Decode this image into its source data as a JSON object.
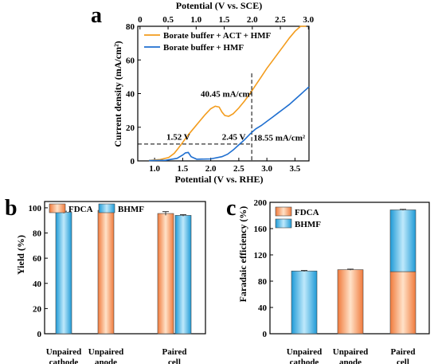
{
  "chart_data": [
    {
      "id": "a",
      "type": "line",
      "panel_label": "a",
      "xlabel": "Potential (V vs. RHE)",
      "x2label": "Potential (V vs. SCE)",
      "ylabel": "Current density (mA/cm²)",
      "xlim": [
        0.7,
        3.75
      ],
      "ylim": [
        0,
        80
      ],
      "xticks": [
        1.0,
        1.5,
        2.0,
        2.5,
        3.0,
        3.5
      ],
      "xticklabels": [
        "1.0",
        "1.5",
        "2.0",
        "2.5",
        "3.0",
        "3.5"
      ],
      "yticks": [
        0,
        20,
        40,
        60,
        80
      ],
      "x2ticks": [
        0,
        0.5,
        1.0,
        1.5,
        2.0,
        2.5,
        3.0
      ],
      "x2ticklabels": [
        "0",
        "0.5",
        "1.0",
        "1.5",
        "2.0",
        "2.5",
        "3.0"
      ],
      "x2_offset": 0.74,
      "legend_position": "top-left",
      "series": [
        {
          "name": "Borate buffer + ACT + HMF",
          "color": "#f39c1d",
          "x": [
            0.9,
            1.1,
            1.25,
            1.35,
            1.42,
            1.5,
            1.6,
            1.7,
            1.8,
            1.9,
            2.0,
            2.08,
            2.15,
            2.2,
            2.25,
            2.32,
            2.4,
            2.5,
            2.6,
            2.7,
            2.8,
            2.9,
            3.0,
            3.1,
            3.2,
            3.3,
            3.4,
            3.5,
            3.6,
            3.7
          ],
          "y": [
            0.3,
            0.8,
            2.0,
            4.5,
            7.5,
            11.0,
            15.5,
            19.5,
            23.5,
            27.5,
            31.0,
            32.5,
            32.0,
            29.0,
            27.0,
            26.5,
            28.0,
            31.5,
            35.5,
            40.0,
            45.0,
            50.0,
            55.0,
            59.5,
            64.0,
            68.5,
            73.0,
            77.0,
            80.0,
            80.0
          ]
        },
        {
          "name": "Borate buffer + HMF",
          "color": "#1f6fd0",
          "x": [
            0.9,
            1.2,
            1.4,
            1.5,
            1.55,
            1.6,
            1.65,
            1.75,
            2.0,
            2.2,
            2.3,
            2.4,
            2.5,
            2.6,
            2.7,
            2.8,
            2.9,
            3.0,
            3.1,
            3.2,
            3.3,
            3.4,
            3.5,
            3.6,
            3.7,
            3.75
          ],
          "y": [
            0.2,
            0.4,
            1.5,
            3.5,
            4.8,
            5.0,
            2.5,
            1.0,
            1.2,
            2.5,
            4.0,
            6.5,
            9.5,
            12.5,
            16.0,
            19.0,
            21.0,
            23.5,
            26.0,
            28.5,
            31.0,
            33.5,
            36.5,
            39.5,
            42.5,
            44.0
          ]
        }
      ],
      "reference_lines": {
        "y": 10,
        "x": 2.73,
        "color": "#000000",
        "style": "dashed"
      },
      "annotations": [
        {
          "text": "1.52 V",
          "x": 1.21,
          "y": 12.5
        },
        {
          "text": "2.45 V",
          "x": 2.2,
          "y": 12.5
        },
        {
          "text": "40.45 mA/cm²",
          "x": 1.82,
          "y": 38
        },
        {
          "text": "18.55 mA/cm²",
          "x": 2.76,
          "y": 12
        }
      ]
    },
    {
      "id": "b",
      "type": "bar",
      "panel_label": "b",
      "ylabel": "Yield (%)",
      "ylim": [
        0,
        105
      ],
      "yticks": [
        0,
        20,
        40,
        60,
        80,
        100
      ],
      "categories": [
        "Unpaired cathode",
        "Unpaired anode",
        "Paired cell"
      ],
      "category_lines": [
        [
          "Unpaired",
          "cathode"
        ],
        [
          "Unpaired",
          "anode"
        ],
        [
          "Paired",
          "cell"
        ]
      ],
      "legend_position": "top-left",
      "series": [
        {
          "name": "FDCA",
          "color": "#f28a4d",
          "values": [
            null,
            98.0,
            95.5
          ],
          "errors": [
            null,
            0.5,
            1.5
          ]
        },
        {
          "name": "BHMF",
          "color": "#2aa6dc",
          "values": [
            96.5,
            null,
            94.0
          ],
          "errors": [
            0.8,
            null,
            0.6
          ]
        }
      ]
    },
    {
      "id": "c",
      "type": "bar",
      "stacked": true,
      "panel_label": "c",
      "ylabel": "Faradaic efficiency (%)",
      "ylim": [
        0,
        200
      ],
      "yticks": [
        0,
        40,
        80,
        120,
        160,
        200
      ],
      "categories": [
        "Unpaired cathode",
        "Unpaired anode",
        "Paired cell"
      ],
      "category_lines": [
        [
          "Unpaired",
          "cathode"
        ],
        [
          "Unpaired",
          "anode"
        ],
        [
          "Paired",
          "cell"
        ]
      ],
      "legend_position": "top-left",
      "series": [
        {
          "name": "FDCA",
          "color": "#f28a4d",
          "values": [
            0,
            97.5,
            94.5
          ]
        },
        {
          "name": "BHMF",
          "color": "#2aa6dc",
          "values": [
            95.5,
            0,
            94.0
          ]
        }
      ],
      "totals_error": [
        0.8,
        0.8,
        0.8
      ]
    }
  ]
}
